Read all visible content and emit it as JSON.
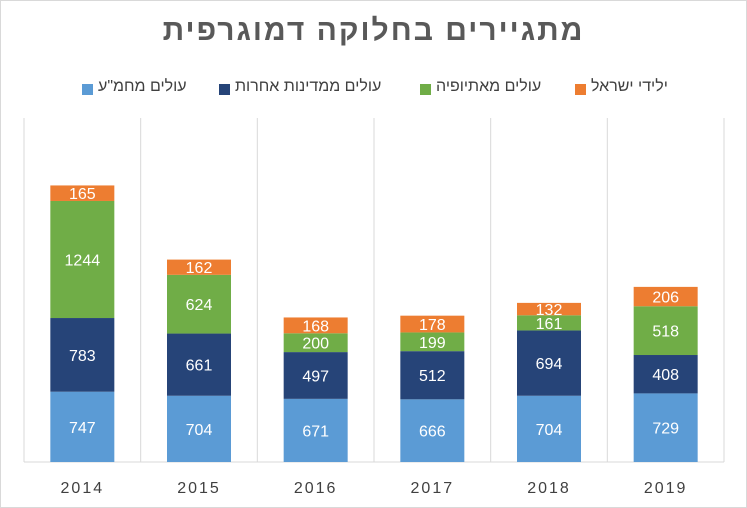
{
  "chart_data": {
    "type": "bar",
    "stacked": true,
    "title": "מתגיירים בחלוקה דמוגרפית",
    "categories": [
      "2014",
      "2015",
      "2016",
      "2017",
      "2018",
      "2019"
    ],
    "series": [
      {
        "name": "עולים מחמ\"ע",
        "color": "#5b9bd5",
        "values": [
          747,
          704,
          671,
          666,
          704,
          729
        ]
      },
      {
        "name": "עולים ממדינות אחרות",
        "color": "#264478",
        "values": [
          783,
          661,
          497,
          512,
          694,
          408
        ]
      },
      {
        "name": "עולים מאתיופיה",
        "color": "#70ad47",
        "values": [
          1244,
          624,
          200,
          199,
          161,
          518
        ]
      },
      {
        "name": "ילידי ישראל",
        "color": "#ed7d31",
        "values": [
          165,
          162,
          168,
          178,
          132,
          206
        ]
      }
    ],
    "legend_order": [
      3,
      2,
      1,
      0
    ],
    "grid": "vertical category separators",
    "legend_position": "top"
  }
}
